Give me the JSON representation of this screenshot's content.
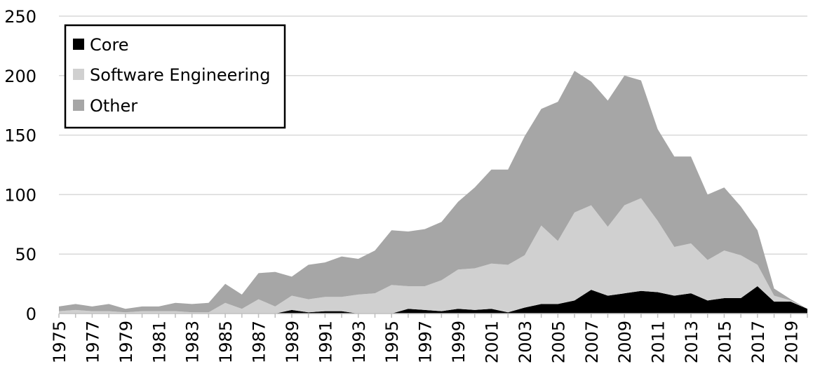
{
  "chart_data": {
    "type": "area",
    "stacked": true,
    "title": "",
    "xlabel": "",
    "ylabel": "",
    "ylim": [
      0,
      250
    ],
    "yticks": [
      0,
      50,
      100,
      150,
      200,
      250
    ],
    "grid": "horizontal",
    "legend_position": "top-left",
    "x": [
      1975,
      1976,
      1977,
      1978,
      1979,
      1980,
      1981,
      1982,
      1983,
      1984,
      1985,
      1986,
      1987,
      1988,
      1989,
      1990,
      1991,
      1992,
      1993,
      1994,
      1995,
      1996,
      1997,
      1998,
      1999,
      2000,
      2001,
      2002,
      2003,
      2004,
      2005,
      2006,
      2007,
      2008,
      2009,
      2010,
      2011,
      2012,
      2013,
      2014,
      2015,
      2016,
      2017,
      2018,
      2019,
      2020
    ],
    "xtick_labels": [
      "1975",
      "1977",
      "1979",
      "1981",
      "1983",
      "1985",
      "1987",
      "1989",
      "1991",
      "1993",
      "1995",
      "1997",
      "1999",
      "2001",
      "2003",
      "2005",
      "2007",
      "2009",
      "2011",
      "2013",
      "2015",
      "2017",
      "2019"
    ],
    "series": [
      {
        "name": "Core",
        "color": "#000000",
        "values": [
          0,
          0,
          0,
          0,
          0,
          0,
          0,
          0,
          0,
          0,
          0,
          0,
          0,
          0,
          3,
          1,
          2,
          2,
          0,
          0,
          0,
          4,
          3,
          2,
          4,
          3,
          4,
          1,
          5,
          8,
          8,
          11,
          20,
          15,
          17,
          19,
          18,
          15,
          17,
          11,
          13,
          13,
          23,
          10,
          10,
          4
        ]
      },
      {
        "name": "Software Engineering",
        "color": "#d0d0d0",
        "values": [
          2,
          3,
          2,
          2,
          1,
          2,
          2,
          2,
          1,
          1,
          9,
          4,
          12,
          6,
          12,
          11,
          12,
          12,
          16,
          17,
          24,
          19,
          20,
          26,
          33,
          35,
          38,
          40,
          44,
          66,
          53,
          74,
          71,
          58,
          74,
          78,
          60,
          41,
          42,
          34,
          40,
          36,
          18,
          5,
          1,
          0
        ]
      },
      {
        "name": "Other",
        "color": "#a6a6a6",
        "values": [
          4,
          5,
          4,
          6,
          3,
          4,
          4,
          7,
          7,
          8,
          16,
          12,
          22,
          29,
          16,
          29,
          29,
          34,
          30,
          36,
          46,
          46,
          48,
          49,
          57,
          68,
          79,
          80,
          100,
          98,
          117,
          119,
          104,
          106,
          109,
          99,
          77,
          76,
          73,
          55,
          53,
          41,
          29,
          6,
          1,
          0
        ]
      }
    ]
  }
}
